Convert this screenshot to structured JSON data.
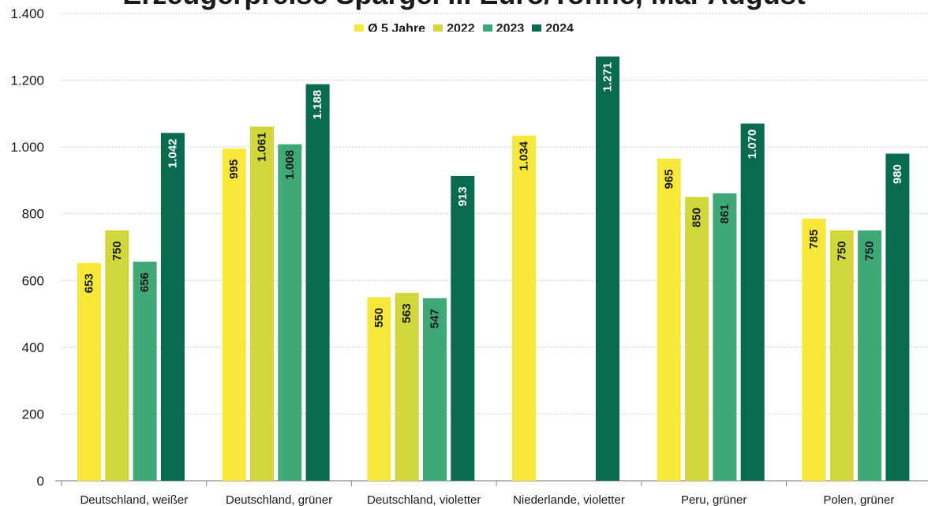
{
  "chart_data": {
    "type": "bar",
    "title": "Erzeugerpreise Spargel ... Euro/Tonne, Mai-August",
    "categories": [
      "Deutschland, weißer",
      "Deutschland, grüner",
      "Deutschland, violetter",
      "Niederlande, violetter",
      "Peru, grüner",
      "Polen, grüner"
    ],
    "series": [
      {
        "name": "Ø 5 Jahre",
        "color": "#f7e83b",
        "values": [
          653,
          995,
          550,
          1034,
          965,
          785
        ],
        "labels": [
          "653",
          "995",
          "550",
          "1.034",
          "965",
          "785"
        ]
      },
      {
        "name": "2022",
        "color": "#d2d83c",
        "values": [
          750,
          1061,
          563,
          null,
          850,
          750
        ],
        "labels": [
          "750",
          "1.061",
          "563",
          "",
          "850",
          "750"
        ]
      },
      {
        "name": "2023",
        "color": "#3fa877",
        "values": [
          656,
          1008,
          547,
          null,
          861,
          750
        ],
        "labels": [
          "656",
          "1.008",
          "547",
          "",
          "861",
          "750"
        ]
      },
      {
        "name": "2024",
        "color": "#086a4f",
        "values": [
          1042,
          1188,
          913,
          1271,
          1070,
          980
        ],
        "labels": [
          "1.042",
          "1.188",
          "913",
          "1.271",
          "1.070",
          "980"
        ]
      }
    ],
    "y_ticks": [
      0,
      200,
      400,
      600,
      800,
      1000,
      1200,
      1400
    ],
    "y_tick_labels": [
      "0",
      "200",
      "400",
      "600",
      "800",
      "1.000",
      "1.200",
      "1.400"
    ],
    "ylim": [
      0,
      1400
    ],
    "grid": true,
    "legend_position": "top-center"
  }
}
